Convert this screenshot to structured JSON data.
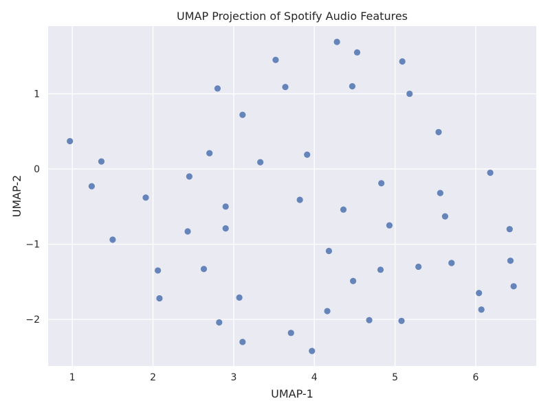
{
  "chart_data": {
    "type": "scatter",
    "title": "UMAP Projection of Spotify Audio Features",
    "xlabel": "UMAP-1",
    "ylabel": "UMAP-2",
    "xlim": [
      0.7,
      6.75
    ],
    "ylim": [
      -2.62,
      1.9
    ],
    "xticks": [
      1,
      2,
      3,
      4,
      5,
      6
    ],
    "yticks": [
      -2,
      -1,
      0,
      1
    ],
    "ytick_labels": [
      "−2",
      "−1",
      "0",
      "1"
    ],
    "grid": true,
    "background_color": "#eaeaf2",
    "point_color": "#4c72b0",
    "points": [
      {
        "x": 0.97,
        "y": 0.37
      },
      {
        "x": 1.24,
        "y": -0.23
      },
      {
        "x": 1.36,
        "y": 0.1
      },
      {
        "x": 1.5,
        "y": -0.94
      },
      {
        "x": 1.91,
        "y": -0.38
      },
      {
        "x": 2.06,
        "y": -1.35
      },
      {
        "x": 2.08,
        "y": -1.72
      },
      {
        "x": 2.43,
        "y": -0.83
      },
      {
        "x": 2.45,
        "y": -0.1
      },
      {
        "x": 2.63,
        "y": -1.33
      },
      {
        "x": 2.7,
        "y": 0.21
      },
      {
        "x": 2.8,
        "y": 1.07
      },
      {
        "x": 2.82,
        "y": -2.04
      },
      {
        "x": 2.9,
        "y": -0.5
      },
      {
        "x": 2.9,
        "y": -0.79
      },
      {
        "x": 3.07,
        "y": -1.71
      },
      {
        "x": 3.11,
        "y": 0.72
      },
      {
        "x": 3.11,
        "y": -2.3
      },
      {
        "x": 3.33,
        "y": 0.09
      },
      {
        "x": 3.52,
        "y": 1.45
      },
      {
        "x": 3.64,
        "y": 1.09
      },
      {
        "x": 3.71,
        "y": -2.18
      },
      {
        "x": 3.82,
        "y": -0.41
      },
      {
        "x": 3.91,
        "y": 0.19
      },
      {
        "x": 3.97,
        "y": -2.42
      },
      {
        "x": 4.16,
        "y": -1.89
      },
      {
        "x": 4.18,
        "y": -1.09
      },
      {
        "x": 4.28,
        "y": 1.69
      },
      {
        "x": 4.36,
        "y": -0.54
      },
      {
        "x": 4.47,
        "y": 1.1
      },
      {
        "x": 4.48,
        "y": -1.49
      },
      {
        "x": 4.53,
        "y": 1.55
      },
      {
        "x": 4.68,
        "y": -2.01
      },
      {
        "x": 4.82,
        "y": -1.34
      },
      {
        "x": 4.83,
        "y": -0.19
      },
      {
        "x": 4.93,
        "y": -0.75
      },
      {
        "x": 5.08,
        "y": -2.02
      },
      {
        "x": 5.09,
        "y": 1.43
      },
      {
        "x": 5.18,
        "y": 1.0
      },
      {
        "x": 5.29,
        "y": -1.3
      },
      {
        "x": 5.54,
        "y": 0.49
      },
      {
        "x": 5.56,
        "y": -0.32
      },
      {
        "x": 5.62,
        "y": -0.63
      },
      {
        "x": 5.7,
        "y": -1.25
      },
      {
        "x": 6.04,
        "y": -1.65
      },
      {
        "x": 6.07,
        "y": -1.87
      },
      {
        "x": 6.18,
        "y": -0.05
      },
      {
        "x": 6.42,
        "y": -0.8
      },
      {
        "x": 6.43,
        "y": -1.22
      },
      {
        "x": 6.47,
        "y": -1.56
      }
    ]
  }
}
